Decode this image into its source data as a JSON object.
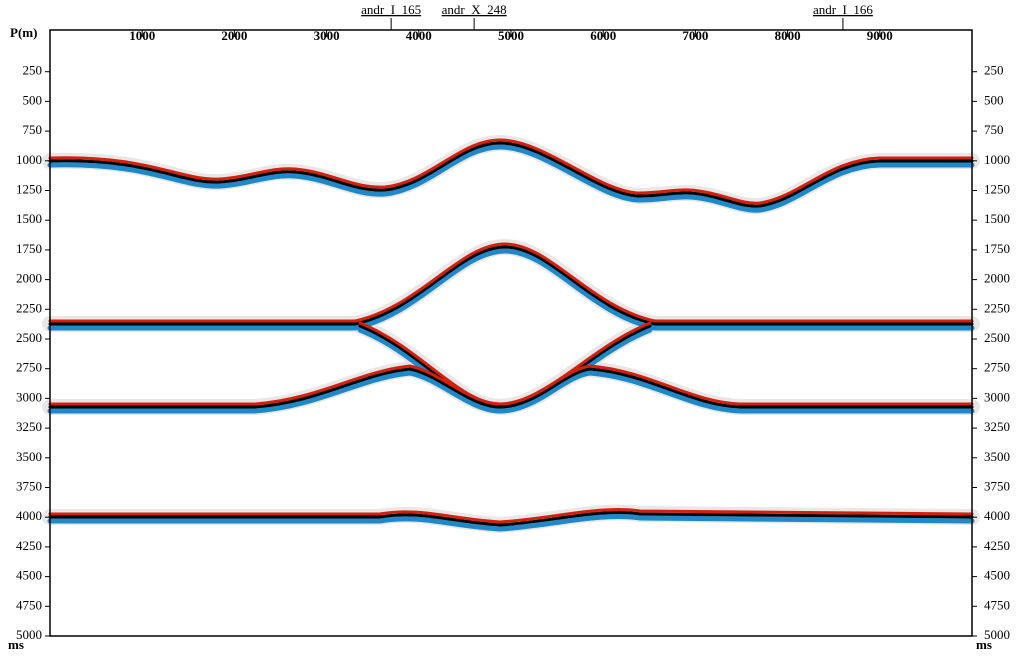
{
  "axes": {
    "x_label": "P(m)",
    "y_unit": "ms",
    "xlim": [
      0,
      10000
    ],
    "xticks": [
      1000,
      2000,
      3000,
      4000,
      5000,
      6000,
      7000,
      8000,
      9000
    ],
    "ylim": [
      0,
      5000
    ],
    "yticks": [
      250,
      500,
      750,
      1000,
      1250,
      1500,
      1750,
      2000,
      2250,
      2500,
      2750,
      3000,
      3250,
      3500,
      3750,
      4000,
      4250,
      4500,
      4750,
      5000
    ]
  },
  "wells": [
    {
      "name": "andr_I_165",
      "position": 3700
    },
    {
      "name": "andr_X_248",
      "position": 4600
    },
    {
      "name": "andr_I_166",
      "position": 8600
    }
  ]
}
